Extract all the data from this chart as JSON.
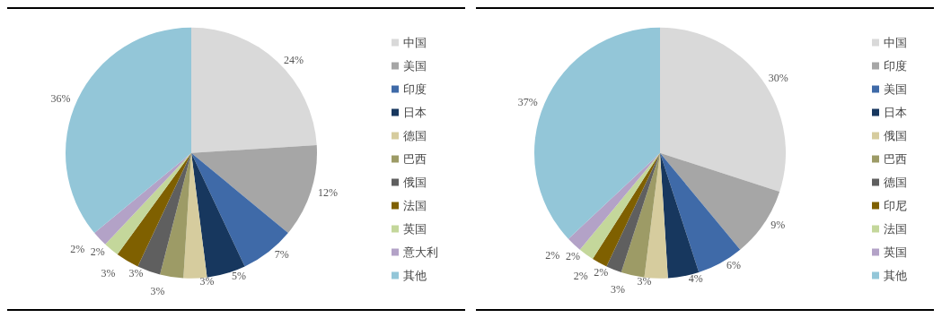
{
  "chart_data": [
    {
      "type": "pie",
      "categories": [
        "中国",
        "美国",
        "印度",
        "日本",
        "德国",
        "巴西",
        "俄国",
        "法国",
        "英国",
        "意大利",
        "其他"
      ],
      "values": [
        24,
        12,
        7,
        5,
        3,
        3,
        3,
        3,
        2,
        2,
        36
      ],
      "value_labels": [
        "24%",
        "12%",
        "7%",
        "5%",
        "3%",
        "3%",
        "3%",
        "3%",
        "2%",
        "2%",
        "36%"
      ],
      "colors": [
        "#d9d9d9",
        "#a6a6a6",
        "#3f6aa8",
        "#17375e",
        "#d6cc9e",
        "#9d9b66",
        "#5f5f5f",
        "#7f6000",
        "#c4d79b",
        "#b3a2c7",
        "#93c6d8"
      ],
      "legend": "right"
    },
    {
      "type": "pie",
      "categories": [
        "中国",
        "印度",
        "美国",
        "日本",
        "俄国",
        "巴西",
        "德国",
        "印尼",
        "法国",
        "英国",
        "其他"
      ],
      "values": [
        30,
        9,
        6,
        4,
        3,
        3,
        2,
        2,
        2,
        2,
        37
      ],
      "value_labels": [
        "30%",
        "9%",
        "6%",
        "4%",
        "3%",
        "3%",
        "2%",
        "2%",
        "2%",
        "2%",
        "37%"
      ],
      "colors": [
        "#d9d9d9",
        "#a6a6a6",
        "#3f6aa8",
        "#17375e",
        "#d6cc9e",
        "#9d9b66",
        "#5f5f5f",
        "#7f6000",
        "#c4d79b",
        "#b3a2c7",
        "#93c6d8"
      ],
      "legend": "right"
    }
  ]
}
